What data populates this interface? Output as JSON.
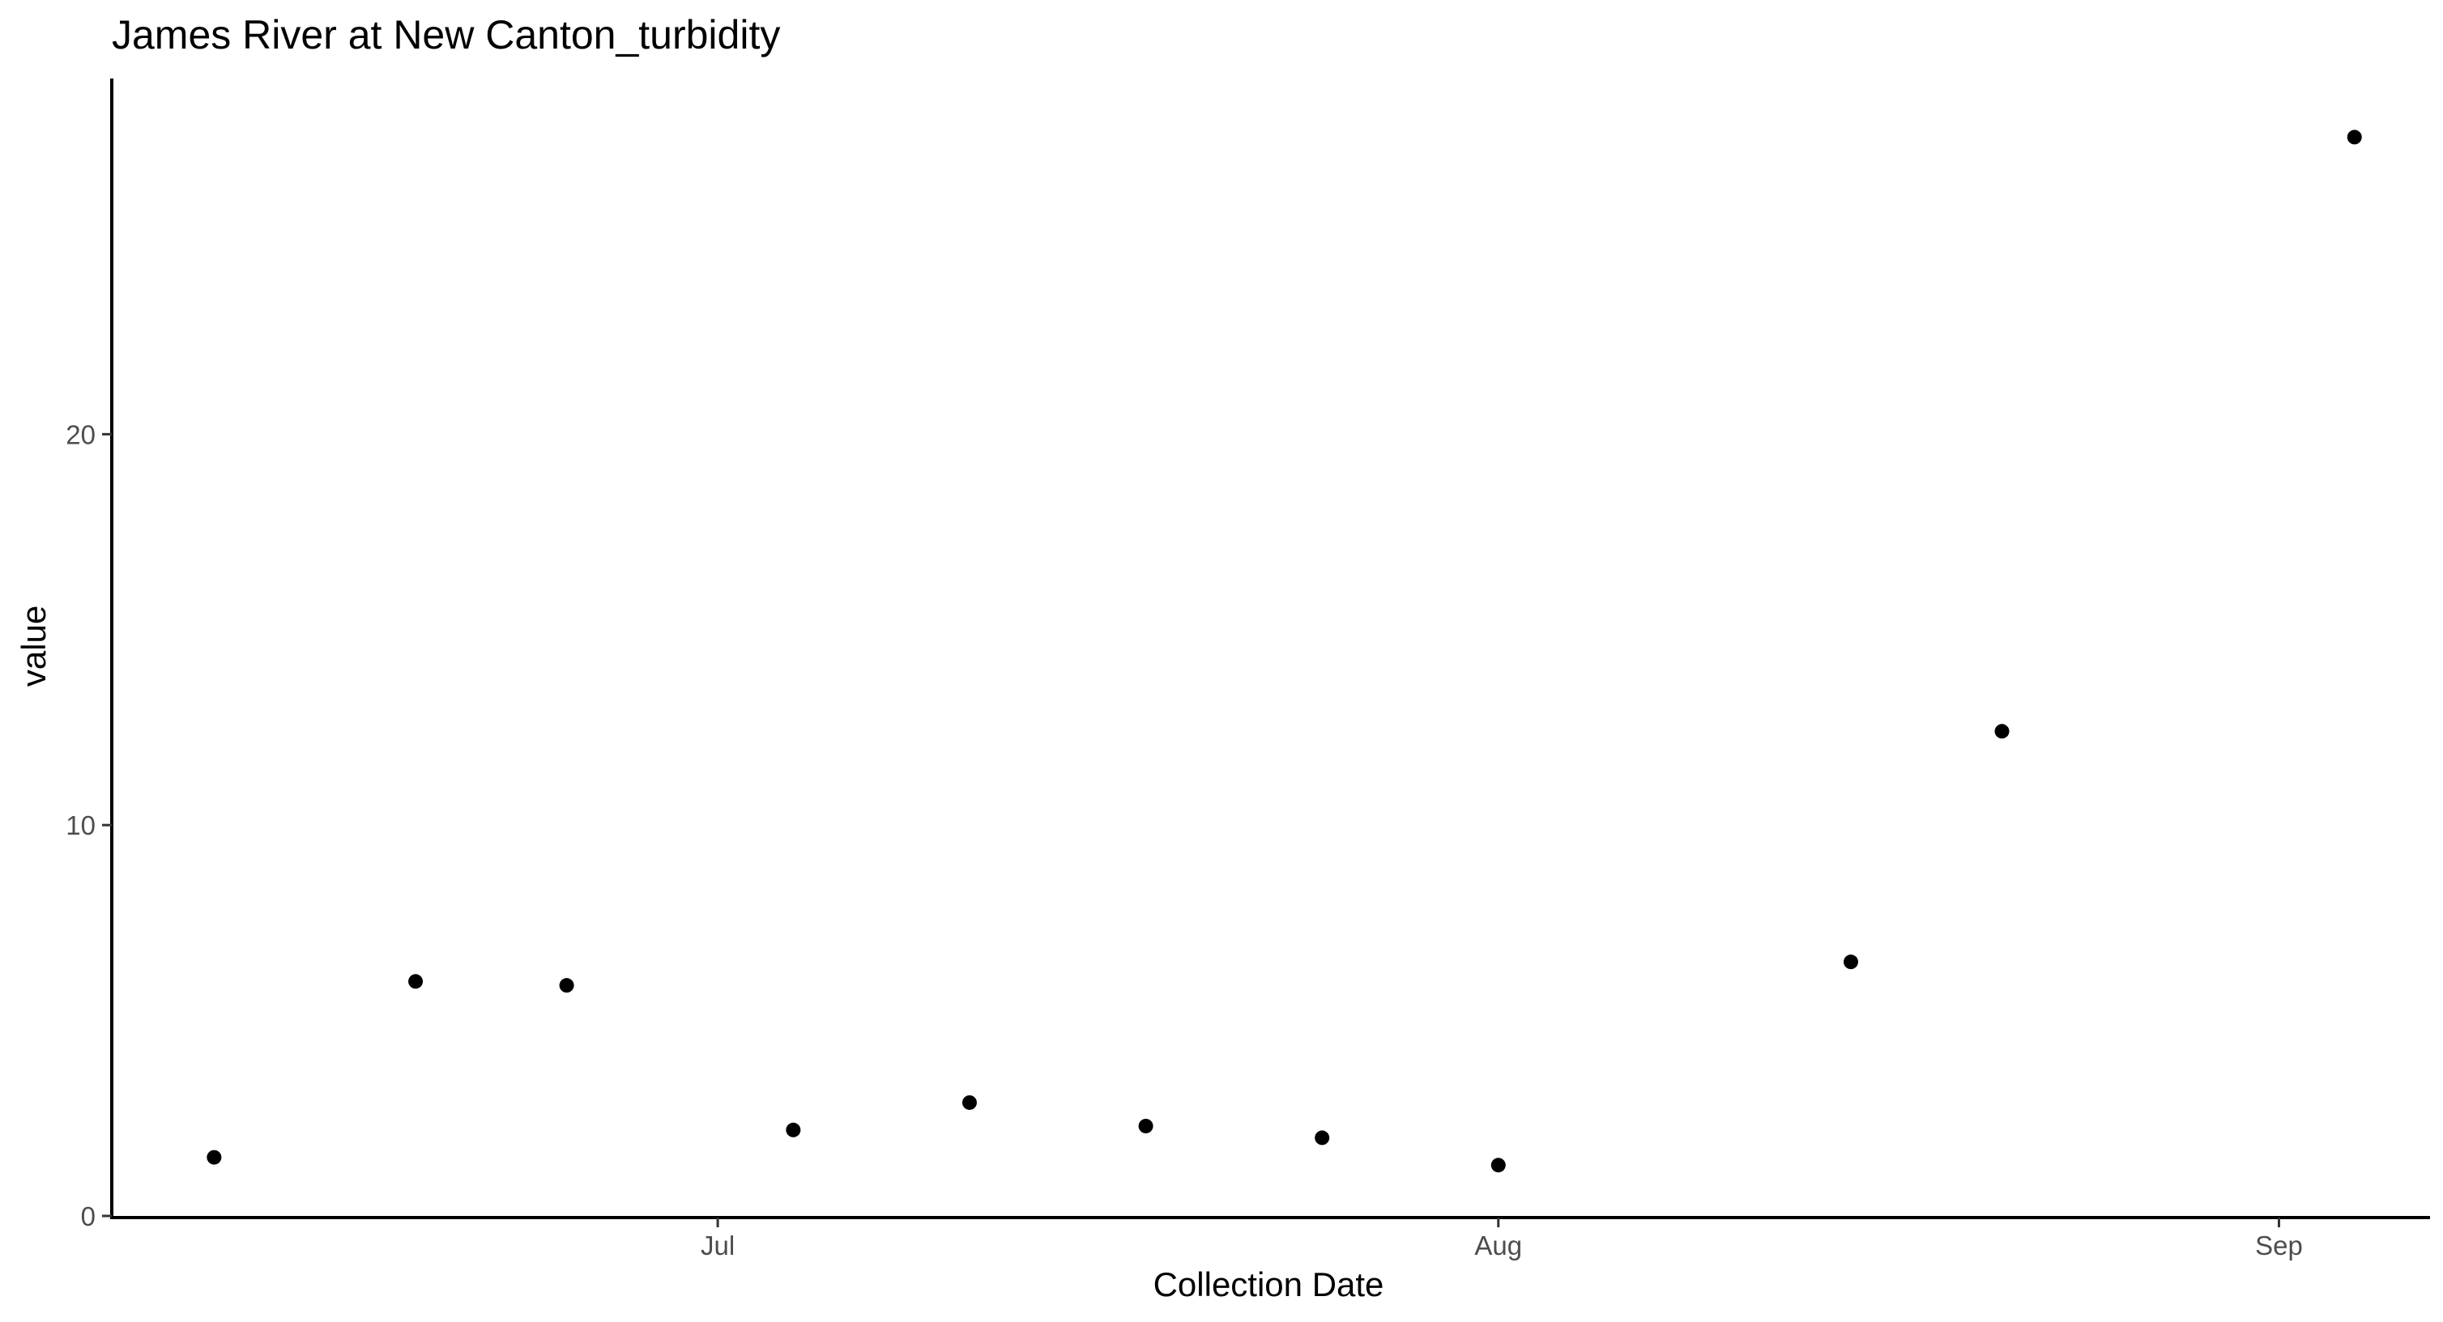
{
  "chart_data": {
    "type": "scatter",
    "title": "James River at New Canton_turbidity",
    "xlabel": "Collection Date",
    "ylabel": "value",
    "x_tick_labels": [
      "Jul",
      "Aug",
      "Sep"
    ],
    "x_tick_dates": [
      "2021-07-01",
      "2021-08-01",
      "2021-09-01"
    ],
    "y_tick_labels": [
      "0",
      "10",
      "20"
    ],
    "y_ticks": [
      0,
      10,
      20
    ],
    "xlim": [
      "2021-06-07",
      "2021-09-07"
    ],
    "ylim": [
      0,
      29.1
    ],
    "grid": false,
    "point_color": "#000000",
    "series": [
      {
        "x": [
          "2021-06-11",
          "2021-06-19",
          "2021-06-25",
          "2021-07-04",
          "2021-07-11",
          "2021-07-18",
          "2021-07-25",
          "2021-08-01",
          "2021-08-15",
          "2021-08-21",
          "2021-09-04"
        ],
        "y": [
          1.5,
          6.0,
          5.9,
          2.2,
          2.9,
          2.3,
          2.0,
          1.3,
          6.5,
          12.4,
          27.6
        ]
      }
    ]
  }
}
